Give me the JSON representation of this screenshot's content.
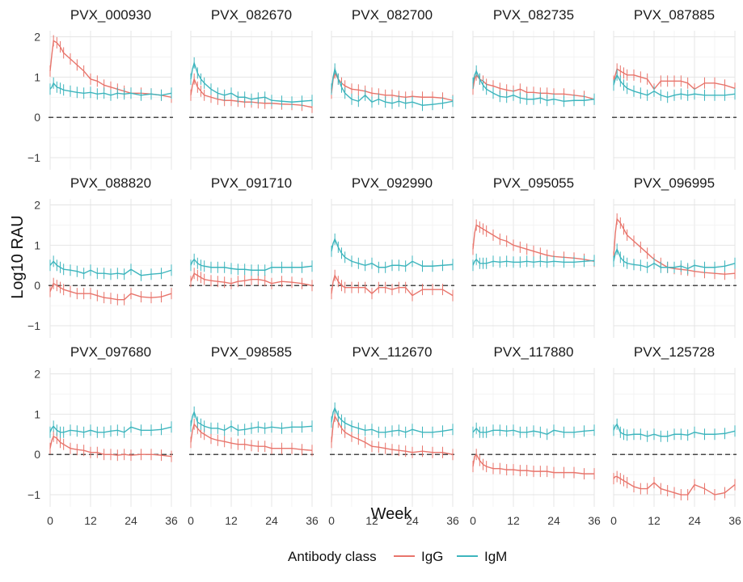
{
  "chart_data": {
    "type": "line",
    "layout": "facet_grid_3x5",
    "xlabel": "Week",
    "ylabel": "Log10 RAU",
    "xlim": [
      0,
      36
    ],
    "ylim": [
      -1.3,
      2.15
    ],
    "xticks": [
      0,
      12,
      24,
      36
    ],
    "yticks": [
      -1,
      0,
      1,
      2
    ],
    "reference_line": {
      "y": 0,
      "style": "dashed"
    },
    "grid": true,
    "legend": {
      "title": "Antibody class",
      "position": "bottom",
      "entries": [
        {
          "name": "IgG",
          "color": "#E8756C"
        },
        {
          "name": "IgM",
          "color": "#3DB5BD"
        }
      ]
    },
    "x": [
      0,
      0.5,
      1,
      2,
      3,
      4,
      6,
      8,
      10,
      12,
      14,
      16,
      18,
      20,
      22,
      24,
      27,
      30,
      33,
      36
    ],
    "panels": [
      {
        "title": "PVX_000930",
        "series": [
          {
            "name": "IgG",
            "values": [
              1.15,
              1.55,
              1.9,
              1.85,
              1.75,
              1.6,
              1.45,
              1.3,
              1.15,
              0.95,
              0.9,
              0.8,
              0.75,
              0.7,
              0.65,
              0.6,
              0.6,
              0.58,
              0.55,
              0.5
            ]
          },
          {
            "name": "IgM",
            "values": [
              0.7,
              0.75,
              0.85,
              0.75,
              0.72,
              0.68,
              0.65,
              0.62,
              0.6,
              0.62,
              0.58,
              0.6,
              0.55,
              0.6,
              0.58,
              0.6,
              0.55,
              0.58,
              0.55,
              0.6
            ]
          }
        ]
      },
      {
        "title": "PVX_082670",
        "series": [
          {
            "name": "IgG",
            "values": [
              0.55,
              0.8,
              0.95,
              0.75,
              0.65,
              0.55,
              0.5,
              0.45,
              0.42,
              0.42,
              0.4,
              0.38,
              0.38,
              0.36,
              0.35,
              0.35,
              0.33,
              0.32,
              0.3,
              0.25
            ]
          },
          {
            "name": "IgM",
            "values": [
              0.95,
              1.2,
              1.35,
              1.1,
              0.95,
              0.85,
              0.7,
              0.6,
              0.55,
              0.6,
              0.5,
              0.5,
              0.45,
              0.48,
              0.5,
              0.42,
              0.4,
              0.38,
              0.4,
              0.42
            ]
          }
        ]
      },
      {
        "title": "PVX_082700",
        "series": [
          {
            "name": "IgG",
            "values": [
              0.6,
              0.95,
              1.1,
              0.95,
              0.85,
              0.78,
              0.7,
              0.68,
              0.65,
              0.6,
              0.58,
              0.55,
              0.55,
              0.52,
              0.5,
              0.52,
              0.5,
              0.5,
              0.48,
              0.42
            ]
          },
          {
            "name": "IgM",
            "values": [
              0.7,
              1.0,
              1.2,
              0.95,
              0.75,
              0.6,
              0.45,
              0.4,
              0.55,
              0.38,
              0.45,
              0.38,
              0.35,
              0.4,
              0.35,
              0.38,
              0.3,
              0.32,
              0.35,
              0.4
            ]
          }
        ]
      },
      {
        "title": "PVX_082735",
        "series": [
          {
            "name": "IgG",
            "values": [
              0.7,
              0.95,
              1.05,
              0.95,
              0.9,
              0.82,
              0.78,
              0.72,
              0.68,
              0.65,
              0.7,
              0.62,
              0.62,
              0.6,
              0.6,
              0.58,
              0.58,
              0.55,
              0.52,
              0.45
            ]
          },
          {
            "name": "IgM",
            "values": [
              0.85,
              1.05,
              1.15,
              0.95,
              0.8,
              0.7,
              0.6,
              0.52,
              0.5,
              0.55,
              0.48,
              0.45,
              0.45,
              0.48,
              0.42,
              0.45,
              0.4,
              0.42,
              0.42,
              0.45
            ]
          }
        ]
      },
      {
        "title": "PVX_087885",
        "series": [
          {
            "name": "IgG",
            "values": [
              0.9,
              1.05,
              1.2,
              1.15,
              1.1,
              1.05,
              1.05,
              1.0,
              0.95,
              0.7,
              0.9,
              0.9,
              0.9,
              0.9,
              0.85,
              0.7,
              0.85,
              0.85,
              0.8,
              0.72
            ]
          },
          {
            "name": "IgM",
            "values": [
              0.8,
              0.95,
              1.05,
              0.9,
              0.8,
              0.72,
              0.65,
              0.6,
              0.55,
              0.65,
              0.55,
              0.5,
              0.55,
              0.58,
              0.55,
              0.58,
              0.55,
              0.55,
              0.55,
              0.58
            ]
          }
        ]
      },
      {
        "title": "PVX_088820",
        "series": [
          {
            "name": "IgG",
            "values": [
              -0.15,
              -0.05,
              0.05,
              0.0,
              -0.05,
              -0.1,
              -0.15,
              -0.2,
              -0.2,
              -0.2,
              -0.25,
              -0.3,
              -0.32,
              -0.35,
              -0.35,
              -0.2,
              -0.28,
              -0.3,
              -0.28,
              -0.2
            ]
          },
          {
            "name": "IgM",
            "values": [
              0.5,
              0.55,
              0.6,
              0.5,
              0.45,
              0.4,
              0.38,
              0.35,
              0.3,
              0.38,
              0.3,
              0.3,
              0.28,
              0.3,
              0.28,
              0.4,
              0.25,
              0.28,
              0.3,
              0.38
            ]
          }
        ]
      },
      {
        "title": "PVX_091710",
        "series": [
          {
            "name": "IgG",
            "values": [
              0.1,
              0.2,
              0.3,
              0.25,
              0.2,
              0.15,
              0.12,
              0.1,
              0.08,
              0.05,
              0.1,
              0.12,
              0.15,
              0.15,
              0.12,
              0.05,
              0.1,
              0.08,
              0.05,
              0.0
            ]
          },
          {
            "name": "IgM",
            "values": [
              0.5,
              0.6,
              0.65,
              0.55,
              0.5,
              0.48,
              0.45,
              0.45,
              0.45,
              0.42,
              0.4,
              0.4,
              0.38,
              0.38,
              0.38,
              0.45,
              0.45,
              0.45,
              0.45,
              0.48
            ]
          }
        ]
      },
      {
        "title": "PVX_092990",
        "series": [
          {
            "name": "IgG",
            "values": [
              -0.2,
              0.1,
              0.25,
              0.1,
              0.0,
              -0.05,
              -0.05,
              -0.05,
              -0.05,
              -0.2,
              -0.05,
              -0.05,
              -0.1,
              -0.05,
              -0.05,
              -0.25,
              -0.1,
              -0.1,
              -0.1,
              -0.25
            ]
          },
          {
            "name": "IgM",
            "values": [
              0.85,
              1.05,
              1.15,
              0.95,
              0.8,
              0.7,
              0.6,
              0.55,
              0.5,
              0.55,
              0.45,
              0.45,
              0.5,
              0.5,
              0.48,
              0.6,
              0.48,
              0.48,
              0.5,
              0.52
            ]
          }
        ]
      },
      {
        "title": "PVX_095055",
        "series": [
          {
            "name": "IgG",
            "values": [
              0.9,
              1.3,
              1.5,
              1.45,
              1.4,
              1.35,
              1.25,
              1.15,
              1.1,
              1.0,
              0.95,
              0.9,
              0.85,
              0.8,
              0.75,
              0.72,
              0.7,
              0.68,
              0.65,
              0.6
            ]
          },
          {
            "name": "IgM",
            "values": [
              0.5,
              0.6,
              0.65,
              0.55,
              0.55,
              0.55,
              0.6,
              0.58,
              0.6,
              0.58,
              0.58,
              0.6,
              0.58,
              0.6,
              0.58,
              0.6,
              0.58,
              0.58,
              0.6,
              0.62
            ]
          }
        ]
      },
      {
        "title": "PVX_096995",
        "series": [
          {
            "name": "IgG",
            "values": [
              0.7,
              1.3,
              1.65,
              1.55,
              1.4,
              1.25,
              1.1,
              0.95,
              0.8,
              0.65,
              0.55,
              0.45,
              0.42,
              0.4,
              0.38,
              0.35,
              0.32,
              0.3,
              0.28,
              0.3
            ]
          },
          {
            "name": "IgM",
            "values": [
              0.6,
              0.8,
              0.9,
              0.7,
              0.6,
              0.55,
              0.52,
              0.5,
              0.45,
              0.55,
              0.45,
              0.45,
              0.45,
              0.48,
              0.42,
              0.5,
              0.45,
              0.45,
              0.48,
              0.55
            ]
          }
        ]
      },
      {
        "title": "PVX_097680",
        "series": [
          {
            "name": "IgG",
            "values": [
              0.15,
              0.35,
              0.45,
              0.4,
              0.3,
              0.25,
              0.15,
              0.12,
              0.1,
              0.05,
              0.05,
              0.0,
              0.0,
              -0.02,
              0.0,
              -0.02,
              0.0,
              0.0,
              -0.02,
              -0.05
            ]
          },
          {
            "name": "IgM",
            "values": [
              0.55,
              0.65,
              0.7,
              0.6,
              0.55,
              0.55,
              0.6,
              0.58,
              0.55,
              0.6,
              0.55,
              0.55,
              0.58,
              0.6,
              0.55,
              0.68,
              0.6,
              0.6,
              0.62,
              0.68
            ]
          }
        ]
      },
      {
        "title": "PVX_098585",
        "series": [
          {
            "name": "IgG",
            "values": [
              0.3,
              0.6,
              0.75,
              0.65,
              0.55,
              0.5,
              0.4,
              0.35,
              0.32,
              0.28,
              0.25,
              0.25,
              0.22,
              0.2,
              0.2,
              0.15,
              0.15,
              0.15,
              0.12,
              0.1
            ]
          },
          {
            "name": "IgM",
            "values": [
              0.7,
              0.95,
              1.05,
              0.8,
              0.75,
              0.7,
              0.65,
              0.65,
              0.6,
              0.7,
              0.6,
              0.62,
              0.65,
              0.68,
              0.65,
              0.68,
              0.65,
              0.68,
              0.68,
              0.7
            ]
          }
        ]
      },
      {
        "title": "PVX_112670",
        "series": [
          {
            "name": "IgG",
            "values": [
              0.3,
              0.75,
              0.95,
              0.8,
              0.65,
              0.55,
              0.45,
              0.38,
              0.3,
              0.2,
              0.18,
              0.15,
              0.12,
              0.1,
              0.08,
              0.05,
              0.08,
              0.05,
              0.05,
              0.0
            ]
          },
          {
            "name": "IgM",
            "values": [
              0.8,
              1.05,
              1.15,
              0.95,
              0.85,
              0.78,
              0.7,
              0.65,
              0.6,
              0.62,
              0.55,
              0.55,
              0.58,
              0.6,
              0.55,
              0.62,
              0.55,
              0.55,
              0.58,
              0.62
            ]
          }
        ]
      },
      {
        "title": "PVX_117880",
        "series": [
          {
            "name": "IgG",
            "values": [
              -0.3,
              -0.05,
              0.0,
              -0.15,
              -0.25,
              -0.3,
              -0.35,
              -0.35,
              -0.38,
              -0.38,
              -0.4,
              -0.4,
              -0.42,
              -0.42,
              -0.42,
              -0.45,
              -0.45,
              -0.45,
              -0.48,
              -0.48
            ]
          },
          {
            "name": "IgM",
            "values": [
              0.55,
              0.6,
              0.65,
              0.55,
              0.55,
              0.55,
              0.6,
              0.6,
              0.58,
              0.6,
              0.55,
              0.55,
              0.58,
              0.55,
              0.5,
              0.6,
              0.55,
              0.55,
              0.58,
              0.6
            ]
          }
        ]
      },
      {
        "title": "PVX_125728",
        "series": [
          {
            "name": "IgG",
            "values": [
              -0.6,
              -0.55,
              -0.55,
              -0.6,
              -0.65,
              -0.7,
              -0.8,
              -0.85,
              -0.85,
              -0.7,
              -0.85,
              -0.9,
              -0.95,
              -1.0,
              -1.0,
              -0.75,
              -0.85,
              -1.0,
              -0.95,
              -0.75
            ]
          },
          {
            "name": "IgM",
            "values": [
              0.6,
              0.7,
              0.75,
              0.55,
              0.5,
              0.48,
              0.5,
              0.5,
              0.45,
              0.5,
              0.45,
              0.45,
              0.5,
              0.5,
              0.48,
              0.55,
              0.5,
              0.5,
              0.52,
              0.58
            ]
          }
        ]
      }
    ]
  }
}
